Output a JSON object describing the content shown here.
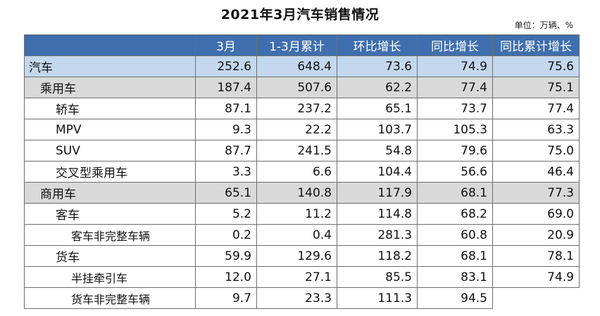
{
  "title": "2021年3月汽车销售情况",
  "unit": "单位：万辆、%",
  "columns": [
    "",
    "3月",
    "1-3月累计",
    "环比增长",
    "同比增长",
    "同比累计增长"
  ],
  "rows": [
    {
      "label": "汽车",
      "indent": 0,
      "style": "level0",
      "values": [
        "252.6",
        "648.4",
        "73.6",
        "74.9",
        "75.6"
      ]
    },
    {
      "label": "乘用车",
      "indent": 1,
      "style": "level1",
      "values": [
        "187.4",
        "507.6",
        "62.2",
        "77.4",
        "75.1"
      ]
    },
    {
      "label": "轿车",
      "indent": 2,
      "style": "leaf",
      "values": [
        "87.1",
        "237.2",
        "65.1",
        "73.7",
        "77.4"
      ]
    },
    {
      "label": "MPV",
      "indent": 2,
      "style": "leaf",
      "values": [
        "9.3",
        "22.2",
        "103.7",
        "105.3",
        "63.3"
      ]
    },
    {
      "label": "SUV",
      "indent": 2,
      "style": "leaf",
      "values": [
        "87.7",
        "241.5",
        "54.8",
        "79.6",
        "75.0"
      ]
    },
    {
      "label": "交叉型乘用车",
      "indent": 2,
      "style": "leaf",
      "values": [
        "3.3",
        "6.6",
        "104.4",
        "56.6",
        "46.4"
      ]
    },
    {
      "label": "商用车",
      "indent": 1,
      "style": "level1",
      "values": [
        "65.1",
        "140.8",
        "117.9",
        "68.1",
        "77.3"
      ]
    },
    {
      "label": "客车",
      "indent": 2,
      "style": "leaf",
      "values": [
        "5.2",
        "11.2",
        "114.8",
        "68.2",
        "69.0"
      ]
    },
    {
      "label": "客车非完整车辆",
      "indent": 3,
      "style": "leaf",
      "values": [
        "0.2",
        "0.4",
        "281.3",
        "60.8",
        "20.9"
      ]
    },
    {
      "label": "货车",
      "indent": 2,
      "style": "leaf",
      "values": [
        "59.9",
        "129.6",
        "118.2",
        "68.1",
        "78.1"
      ]
    },
    {
      "label": "半挂牵引车",
      "indent": 3,
      "style": "leaf",
      "values": [
        "12.0",
        "27.1",
        "85.5",
        "83.1",
        "74.9"
      ]
    },
    {
      "label": "货车非完整车辆",
      "indent": 3,
      "style": "leaf",
      "values": [
        "9.7",
        "23.3",
        "111.3",
        "94.5",
        ""
      ]
    }
  ]
}
